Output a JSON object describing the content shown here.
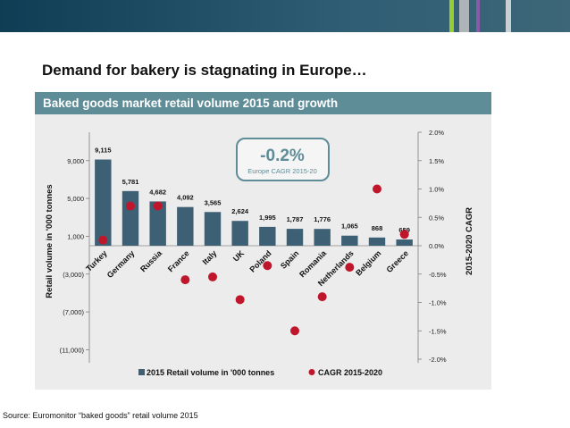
{
  "slide": {
    "title": "Demand for bakery is stagnating in Europe…",
    "source": "Source: Euromonitor “baked goods” retail volume 2015"
  },
  "chart_header": "Baked goods market retail volume 2015 and growth",
  "callout": {
    "value": "-0.2%",
    "label": "Europe CAGR 2015-20"
  },
  "colors": {
    "bar": "#3e6074",
    "dot": "#c0162b",
    "callout_border": "#5e8c97",
    "callout_text": "#5e8c97"
  },
  "chart_data": {
    "type": "bar",
    "title": "Baked goods market retail volume 2015 and growth",
    "categories": [
      "Turkey",
      "Germany",
      "Russia",
      "France",
      "Italy",
      "UK",
      "Poland",
      "Spain",
      "Romania",
      "Netherlands",
      "Belgium",
      "Greece"
    ],
    "series": [
      {
        "name": "2015 Retail volume in '000 tonnes",
        "axis": "left",
        "type": "bar",
        "values": [
          9115,
          5781,
          4682,
          4092,
          3565,
          2624,
          1995,
          1787,
          1776,
          1065,
          868,
          659
        ],
        "labels": [
          "9,115",
          "5,781",
          "4,682",
          "4,092",
          "3,565",
          "2,624",
          "1,995",
          "1,787",
          "1,776",
          "1,065",
          "868",
          "659"
        ]
      },
      {
        "name": "CAGR 2015-2020",
        "axis": "right",
        "type": "scatter",
        "values": [
          0.1,
          0.7,
          0.7,
          -0.6,
          -0.55,
          -0.95,
          -0.35,
          -1.5,
          -0.9,
          -0.38,
          1.0,
          0.2
        ]
      }
    ],
    "ylabel": "Retail volume in '000 tonnes",
    "y2label": "2015-2020 CAGR",
    "ylim": [
      -11000,
      12000
    ],
    "y2lim": [
      -2.0,
      2.0
    ],
    "yticks": [
      9000,
      5000,
      1000,
      -3000,
      -7000,
      -11000
    ],
    "ytick_labels": [
      "9,000",
      "5,000",
      "1,000",
      "(3,000)",
      "(7,000)",
      "(11,000)"
    ],
    "y2ticks": [
      2.0,
      1.5,
      1.0,
      0.5,
      0.0,
      -0.5,
      -1.0,
      -1.5,
      -2.0
    ],
    "y2tick_labels": [
      "2.0%",
      "1.5%",
      "1.0%",
      "0.5%",
      "0.0%",
      "-0.5%",
      "-1.0%",
      "-1.5%",
      "-2.0%"
    ],
    "legend": {
      "position": "bottom",
      "entries": [
        "2015 Retail volume in '000 tonnes",
        "CAGR 2015-2020"
      ]
    }
  }
}
